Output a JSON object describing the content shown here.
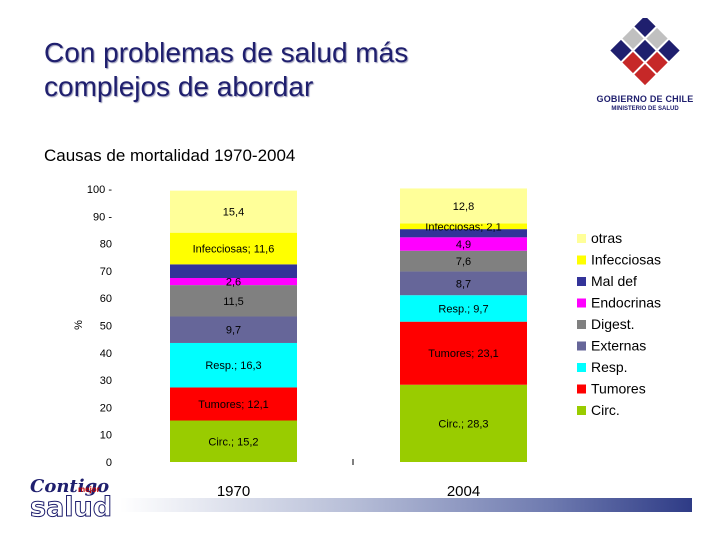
{
  "slide": {
    "title_line1": "Con problemas de salud más",
    "title_line2": "complejos de abordar",
    "subtitle": "Causas de mortalidad 1970-2004"
  },
  "gov_logo": {
    "name": "GOBIERNO DE CHILE",
    "ministry": "MINISTERIO DE SALUD"
  },
  "footer_logo": {
    "word1": "Contigo",
    "word2": "mejor",
    "word3": "salud"
  },
  "colors": {
    "otras": "#ffff99",
    "infecciosas": "#ffff00",
    "mal_def": "#333399",
    "endocrinas": "#ff00ff",
    "digest": "#808080",
    "externas": "#666699",
    "resp": "#00ffff",
    "tumores": "#ff0000",
    "circ": "#99cc00"
  },
  "chart_data": {
    "type": "bar",
    "stacked": true,
    "title": "Causas de mortalidad 1970-2004",
    "ylabel": "%",
    "ylim": [
      0,
      100
    ],
    "yticks": [
      "0",
      "10",
      "20",
      "30",
      "40",
      "50",
      "60",
      "70",
      "80",
      "90 -",
      "100 -"
    ],
    "categories": [
      "1970",
      "2004"
    ],
    "legend_position": "right",
    "series": [
      {
        "name": "Circ.",
        "key": "circ",
        "values": [
          15.2,
          28.3
        ],
        "labels": [
          "Circ.; 15,2",
          "Circ.; 28,3"
        ]
      },
      {
        "name": "Tumores",
        "key": "tumores",
        "values": [
          12.1,
          23.1
        ],
        "labels": [
          "Tumores; 12,1",
          "Tumores; 23,1"
        ]
      },
      {
        "name": "Resp.",
        "key": "resp",
        "values": [
          16.3,
          9.7
        ],
        "labels": [
          "Resp.; 16,3",
          "Resp.; 9,7"
        ]
      },
      {
        "name": "Externas",
        "key": "externas",
        "values": [
          9.7,
          8.7
        ],
        "labels": [
          "9,7",
          "8,7"
        ]
      },
      {
        "name": "Digest.",
        "key": "digest",
        "values": [
          11.5,
          7.6
        ],
        "labels": [
          "11,5",
          "7,6"
        ]
      },
      {
        "name": "Endocrinas",
        "key": "endocrinas",
        "values": [
          2.6,
          4.9
        ],
        "labels": [
          "2,6",
          "4,9"
        ]
      },
      {
        "name": "Mal def",
        "key": "mal_def",
        "values": [
          5.0,
          3.0
        ],
        "labels": [
          "",
          ""
        ]
      },
      {
        "name": "Infecciosas",
        "key": "infecciosas",
        "values": [
          11.6,
          2.1
        ],
        "labels": [
          "Infecciosas; 11,6",
          "Infecciosas; 2,1"
        ]
      },
      {
        "name": "otras",
        "key": "otras",
        "values": [
          15.4,
          12.8
        ],
        "labels": [
          "15,4",
          "12,8"
        ]
      }
    ],
    "legend_order": [
      "otras",
      "Infecciosas",
      "Mal def",
      "Endocrinas",
      "Digest.",
      "Externas",
      "Resp.",
      "Tumores",
      "Circ."
    ]
  }
}
